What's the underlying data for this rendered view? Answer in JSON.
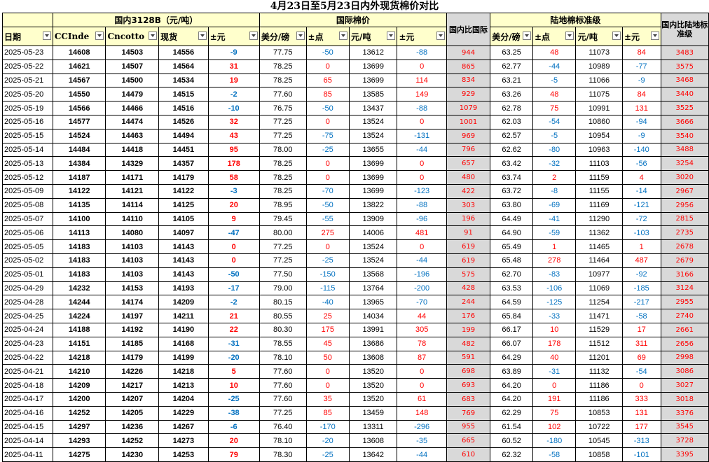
{
  "title": "4月23日至5月23日内外现货棉价对比",
  "groups": {
    "domestic": "国内3128B（元/吨）",
    "intl": "国际棉价",
    "diff1": "国内比国际",
    "land": "陆地棉标准级",
    "diff2": "国内比陆地标准级"
  },
  "columns": {
    "date": "日期",
    "ccindex": "CCInde",
    "cncotton": "Cncotto",
    "spot": "现货",
    "chg": "±元",
    "intl_usd": "美分/磅",
    "intl_pts": "±点",
    "intl_cny": "元/吨",
    "intl_chg": "±元",
    "land_usd": "美分/磅",
    "land_pts": "±点",
    "land_cny": "元/吨",
    "land_chg": "±元"
  },
  "rows": [
    [
      "2025-05-23",
      "14608",
      "14503",
      "14556",
      "-9",
      "77.75",
      "-50",
      "13612",
      "-88",
      "944",
      "63.25",
      "48",
      "11073",
      "84",
      "3483"
    ],
    [
      "2025-05-22",
      "14621",
      "14507",
      "14564",
      "31",
      "78.25",
      "0",
      "13699",
      "0",
      "865",
      "62.77",
      "-44",
      "10989",
      "-77",
      "3575"
    ],
    [
      "2025-05-21",
      "14567",
      "14500",
      "14534",
      "19",
      "78.25",
      "65",
      "13699",
      "114",
      "834",
      "63.21",
      "-5",
      "11066",
      "-9",
      "3468"
    ],
    [
      "2025-05-20",
      "14550",
      "14479",
      "14515",
      "-2",
      "77.60",
      "85",
      "13585",
      "149",
      "929",
      "63.26",
      "48",
      "11075",
      "84",
      "3440"
    ],
    [
      "2025-05-19",
      "14566",
      "14466",
      "14516",
      "-10",
      "76.75",
      "-50",
      "13437",
      "-88",
      "1079",
      "62.78",
      "75",
      "10991",
      "131",
      "3525"
    ],
    [
      "2025-05-16",
      "14577",
      "14474",
      "14526",
      "32",
      "77.25",
      "0",
      "13524",
      "0",
      "1001",
      "62.03",
      "-54",
      "10860",
      "-94",
      "3666"
    ],
    [
      "2025-05-15",
      "14524",
      "14463",
      "14494",
      "43",
      "77.25",
      "-75",
      "13524",
      "-131",
      "969",
      "62.57",
      "-5",
      "10954",
      "-9",
      "3540"
    ],
    [
      "2025-05-14",
      "14484",
      "14418",
      "14451",
      "95",
      "78.00",
      "-25",
      "13655",
      "-44",
      "796",
      "62.62",
      "-80",
      "10963",
      "-140",
      "3488"
    ],
    [
      "2025-05-13",
      "14384",
      "14329",
      "14357",
      "178",
      "78.25",
      "0",
      "13699",
      "0",
      "657",
      "63.42",
      "-32",
      "11103",
      "-56",
      "3254"
    ],
    [
      "2025-05-12",
      "14187",
      "14171",
      "14179",
      "58",
      "78.25",
      "0",
      "13699",
      "0",
      "480",
      "63.74",
      "2",
      "11159",
      "4",
      "3020"
    ],
    [
      "2025-05-09",
      "14122",
      "14121",
      "14122",
      "-3",
      "78.25",
      "-70",
      "13699",
      "-123",
      "422",
      "63.72",
      "-8",
      "11155",
      "-14",
      "2967"
    ],
    [
      "2025-05-08",
      "14135",
      "14114",
      "14125",
      "20",
      "78.95",
      "-50",
      "13822",
      "-88",
      "303",
      "63.80",
      "-69",
      "11169",
      "-121",
      "2956"
    ],
    [
      "2025-05-07",
      "14100",
      "14110",
      "14105",
      "9",
      "79.45",
      "-55",
      "13909",
      "-96",
      "196",
      "64.49",
      "-41",
      "11290",
      "-72",
      "2815"
    ],
    [
      "2025-05-06",
      "14113",
      "14080",
      "14097",
      "-47",
      "80.00",
      "275",
      "14006",
      "481",
      "91",
      "64.90",
      "-59",
      "11362",
      "-103",
      "2735"
    ],
    [
      "2025-05-05",
      "14183",
      "14103",
      "14143",
      "0",
      "77.25",
      "0",
      "13524",
      "0",
      "619",
      "65.49",
      "1",
      "11465",
      "1",
      "2678"
    ],
    [
      "2025-05-02",
      "14183",
      "14103",
      "14143",
      "0",
      "77.25",
      "-25",
      "13524",
      "-44",
      "619",
      "65.48",
      "278",
      "11464",
      "487",
      "2679"
    ],
    [
      "2025-05-01",
      "14183",
      "14103",
      "14143",
      "-50",
      "77.50",
      "-150",
      "13568",
      "-196",
      "575",
      "62.70",
      "-83",
      "10977",
      "-92",
      "3166"
    ],
    [
      "2025-04-29",
      "14232",
      "14153",
      "14193",
      "-17",
      "79.00",
      "-115",
      "13764",
      "-200",
      "428",
      "63.53",
      "-106",
      "11069",
      "-185",
      "3124"
    ],
    [
      "2025-04-28",
      "14244",
      "14174",
      "14209",
      "-2",
      "80.15",
      "-40",
      "13965",
      "-70",
      "244",
      "64.59",
      "-125",
      "11254",
      "-217",
      "2955"
    ],
    [
      "2025-04-25",
      "14224",
      "14197",
      "14211",
      "21",
      "80.55",
      "25",
      "14034",
      "44",
      "176",
      "65.84",
      "-33",
      "11471",
      "-58",
      "2740"
    ],
    [
      "2025-04-24",
      "14188",
      "14192",
      "14190",
      "22",
      "80.30",
      "175",
      "13991",
      "305",
      "199",
      "66.17",
      "10",
      "11529",
      "17",
      "2661"
    ],
    [
      "2025-04-23",
      "14151",
      "14185",
      "14168",
      "-31",
      "78.55",
      "45",
      "13686",
      "78",
      "482",
      "66.07",
      "178",
      "11512",
      "311",
      "2656"
    ],
    [
      "2025-04-22",
      "14218",
      "14179",
      "14199",
      "-20",
      "78.10",
      "50",
      "13608",
      "87",
      "591",
      "64.29",
      "40",
      "11201",
      "69",
      "2998"
    ],
    [
      "2025-04-21",
      "14210",
      "14226",
      "14218",
      "5",
      "77.60",
      "0",
      "13520",
      "0",
      "698",
      "63.89",
      "-31",
      "11132",
      "-54",
      "3086"
    ],
    [
      "2025-04-18",
      "14209",
      "14217",
      "14213",
      "10",
      "77.60",
      "0",
      "13520",
      "0",
      "693",
      "64.20",
      "0",
      "11186",
      "0",
      "3027"
    ],
    [
      "2025-04-17",
      "14200",
      "14207",
      "14204",
      "-25",
      "77.60",
      "35",
      "13520",
      "61",
      "683",
      "64.20",
      "191",
      "11186",
      "333",
      "3018"
    ],
    [
      "2025-04-16",
      "14252",
      "14205",
      "14229",
      "-38",
      "77.25",
      "85",
      "13459",
      "148",
      "769",
      "62.29",
      "75",
      "10853",
      "131",
      "3376"
    ],
    [
      "2025-04-15",
      "14297",
      "14236",
      "14267",
      "-6",
      "76.40",
      "-170",
      "13311",
      "-296",
      "955",
      "61.54",
      "102",
      "10722",
      "177",
      "3545"
    ],
    [
      "2025-04-14",
      "14293",
      "14252",
      "14273",
      "20",
      "78.10",
      "-20",
      "13608",
      "-35",
      "665",
      "60.52",
      "-180",
      "10545",
      "-313",
      "3728"
    ],
    [
      "2025-04-11",
      "14275",
      "14230",
      "14253",
      "79",
      "78.30",
      "-25",
      "13642",
      "-44",
      "610",
      "62.32",
      "-58",
      "10858",
      "-101",
      "3395"
    ]
  ]
}
